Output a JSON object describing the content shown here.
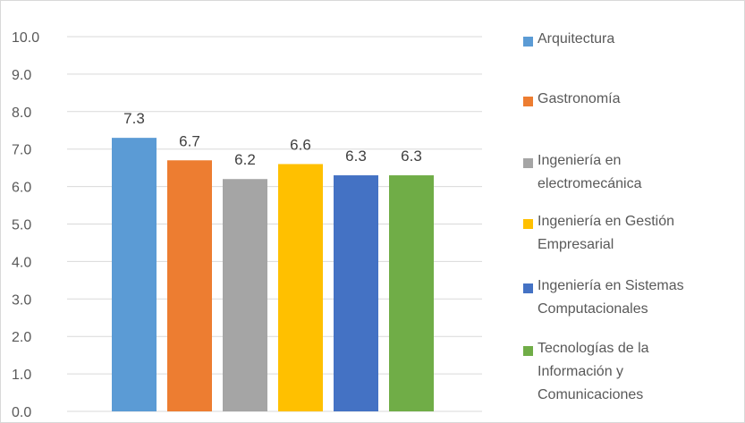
{
  "chart_data": {
    "type": "bar",
    "categories": [
      "Arquitectura",
      "Gastronomía",
      "Ingeniería en electromecánica",
      "Ingeniería en Gestión Empresarial",
      "Ingeniería en Sistemas Computacionales",
      "Tecnologías de la Información y Comunicaciones"
    ],
    "values": [
      7.3,
      6.7,
      6.2,
      6.6,
      6.3,
      6.3
    ],
    "value_labels": [
      "7.3",
      "6.7",
      "6.2",
      "6.6",
      "6.3",
      "6.3"
    ],
    "colors": [
      "#5B9BD5",
      "#ED7D31",
      "#A5A5A5",
      "#FFC000",
      "#4472C4",
      "#70AD47"
    ],
    "ylim": [
      0,
      10
    ],
    "yticks": [
      "0.0",
      "1.0",
      "2.0",
      "3.0",
      "4.0",
      "5.0",
      "6.0",
      "7.0",
      "8.0",
      "9.0",
      "10.0"
    ],
    "grid": true,
    "gridline_color": "#d9d9d9",
    "legend_position": "right",
    "legend": [
      {
        "lines": [
          "Arquitectura"
        ]
      },
      {
        "lines": [
          "Gastronomía"
        ]
      },
      {
        "lines": [
          "Ingeniería en",
          "electromecánica"
        ]
      },
      {
        "lines": [
          "Ingeniería en Gestión",
          "Empresarial"
        ]
      },
      {
        "lines": [
          "Ingeniería en Sistemas",
          "Computacionales"
        ]
      },
      {
        "lines": [
          "Tecnologías de la",
          "Información y",
          "Comunicaciones"
        ]
      }
    ],
    "title": "",
    "xlabel": "",
    "ylabel": ""
  }
}
